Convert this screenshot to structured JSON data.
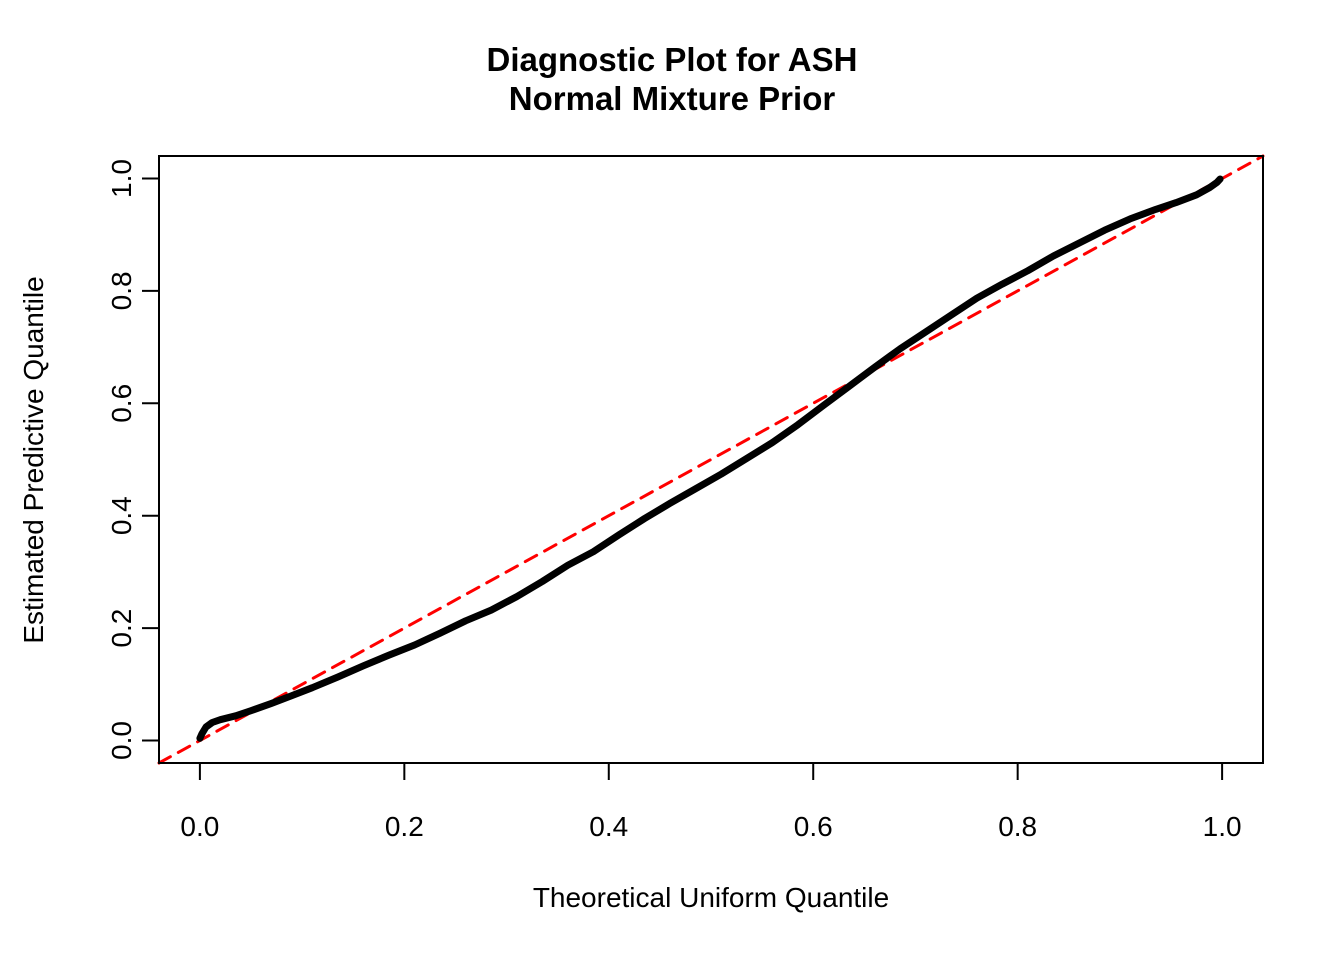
{
  "figure": {
    "background": "#ffffff",
    "foreground": "#000000"
  },
  "chart_data": {
    "type": "line",
    "title_lines": [
      "Diagnostic Plot for ASH",
      "Normal Mixture Prior"
    ],
    "xlabel": "Theoretical Uniform Quantile",
    "ylabel": "Estimated Predictive Quantile",
    "xlim": [
      -0.04,
      1.04
    ],
    "ylim": [
      -0.04,
      1.04
    ],
    "grid": false,
    "legend": "none",
    "x_ticks": {
      "values": [
        0,
        0.2,
        0.4,
        0.6,
        0.8,
        1.0
      ],
      "labels": [
        "0.0",
        "0.2",
        "0.4",
        "0.6",
        "0.8",
        "1.0"
      ]
    },
    "y_ticks": {
      "values": [
        0,
        0.2,
        0.4,
        0.6,
        0.8,
        1.0
      ],
      "labels": [
        "0.0",
        "0.2",
        "0.4",
        "0.6",
        "0.8",
        "1.0"
      ]
    },
    "series": [
      {
        "name": "identity-reference-line",
        "style": "dashed",
        "color": "#FF0000",
        "stroke_width": 3,
        "dash": [
          13,
          9
        ],
        "points": [
          [
            -0.04,
            -0.04
          ],
          [
            1.04,
            1.04
          ]
        ]
      },
      {
        "name": "estimated-predictive-quantile-curve",
        "style": "solid",
        "color": "#000000",
        "stroke_width": 7,
        "points": [
          [
            0.0,
            0.004
          ],
          [
            0.002,
            0.012
          ],
          [
            0.006,
            0.024
          ],
          [
            0.012,
            0.032
          ],
          [
            0.02,
            0.037
          ],
          [
            0.035,
            0.044
          ],
          [
            0.05,
            0.053
          ],
          [
            0.07,
            0.066
          ],
          [
            0.09,
            0.08
          ],
          [
            0.11,
            0.094
          ],
          [
            0.135,
            0.113
          ],
          [
            0.16,
            0.133
          ],
          [
            0.185,
            0.152
          ],
          [
            0.21,
            0.17
          ],
          [
            0.235,
            0.191
          ],
          [
            0.26,
            0.213
          ],
          [
            0.285,
            0.232
          ],
          [
            0.31,
            0.256
          ],
          [
            0.335,
            0.283
          ],
          [
            0.36,
            0.312
          ],
          [
            0.385,
            0.336
          ],
          [
            0.41,
            0.366
          ],
          [
            0.435,
            0.395
          ],
          [
            0.46,
            0.422
          ],
          [
            0.485,
            0.448
          ],
          [
            0.51,
            0.474
          ],
          [
            0.535,
            0.502
          ],
          [
            0.56,
            0.53
          ],
          [
            0.585,
            0.562
          ],
          [
            0.61,
            0.596
          ],
          [
            0.635,
            0.63
          ],
          [
            0.66,
            0.664
          ],
          [
            0.685,
            0.697
          ],
          [
            0.71,
            0.727
          ],
          [
            0.735,
            0.757
          ],
          [
            0.76,
            0.787
          ],
          [
            0.785,
            0.812
          ],
          [
            0.81,
            0.836
          ],
          [
            0.835,
            0.862
          ],
          [
            0.86,
            0.885
          ],
          [
            0.885,
            0.908
          ],
          [
            0.91,
            0.928
          ],
          [
            0.935,
            0.945
          ],
          [
            0.955,
            0.957
          ],
          [
            0.975,
            0.971
          ],
          [
            0.988,
            0.984
          ],
          [
            0.995,
            0.993
          ],
          [
            0.998,
            0.999
          ]
        ]
      }
    ]
  }
}
